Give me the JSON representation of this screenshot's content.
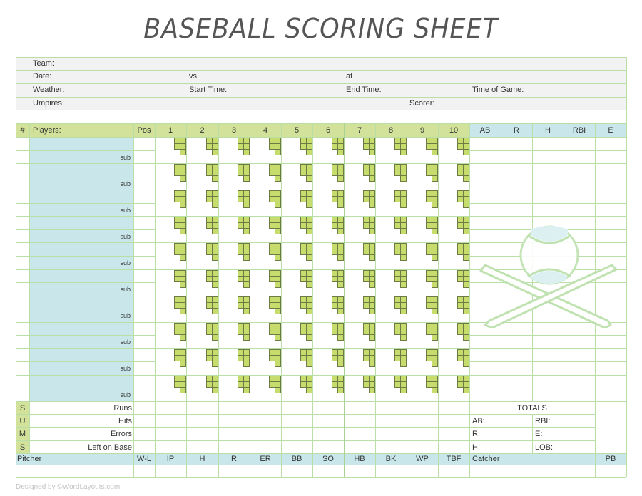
{
  "title": "BASEBALL SCORING SHEET",
  "info": {
    "team_label": "Team:",
    "date_label": "Date:",
    "vs_label": "vs",
    "at_label": "at",
    "weather_label": "Weather:",
    "start_time_label": "Start Time:",
    "end_time_label": "End Time:",
    "time_of_game_label": "Time of Game:",
    "umpires_label": "Umpires:",
    "scorer_label": "Scorer:"
  },
  "lineup_header": {
    "number": "#",
    "players": "Players:",
    "pos": "Pos",
    "innings": [
      "1",
      "2",
      "3",
      "4",
      "5",
      "6",
      "7",
      "8",
      "9",
      "10"
    ],
    "stats": [
      "AB",
      "R",
      "H",
      "RBI",
      "E"
    ]
  },
  "player_rows": 10,
  "sub_label": "sub",
  "sums": {
    "side_letters": [
      "S",
      "U",
      "M",
      "S"
    ],
    "labels": [
      "Runs",
      "Hits",
      "Errors",
      "Left on Base"
    ]
  },
  "totals": {
    "title": "TOTALS",
    "labels": [
      "AB:",
      "RBI:",
      "R:",
      "E:",
      "H:",
      "LOB:"
    ]
  },
  "pitcher_header": {
    "pitcher": "Pitcher",
    "columns": [
      "W-L",
      "IP",
      "H",
      "R",
      "ER",
      "BB",
      "SO",
      "HB",
      "BK",
      "WP",
      "TBF"
    ],
    "catcher": "Catcher",
    "pb": "PB"
  },
  "colors": {
    "grid_line": "#b9dfa6",
    "header_green": "#d3e29b",
    "accent_cyan": "#c9e7ea",
    "info_gray": "#f2f2f2",
    "diamond_fill": "#c6dc6c",
    "diamond_border": "#6f7a45"
  },
  "footer": "Designed by ©WordLayouts.com"
}
